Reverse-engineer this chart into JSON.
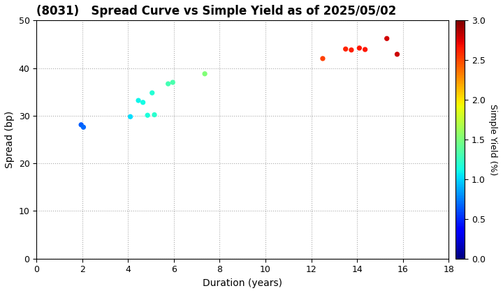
{
  "title": "(8031)   Spread Curve vs Simple Yield as of 2025/05/02",
  "xlabel": "Duration (years)",
  "ylabel": "Spread (bp)",
  "colorbar_label": "Simple Yield (%)",
  "xlim": [
    0,
    18
  ],
  "ylim": [
    0,
    50
  ],
  "xticks": [
    0,
    2,
    4,
    6,
    8,
    10,
    12,
    14,
    16,
    18
  ],
  "yticks": [
    0,
    10,
    20,
    30,
    40,
    50
  ],
  "colorbar_min": 0.0,
  "colorbar_max": 3.0,
  "colorbar_ticks": [
    0.0,
    0.5,
    1.0,
    1.5,
    2.0,
    2.5,
    3.0
  ],
  "colorbar_ticklabels": [
    "0.0",
    "0.5",
    "1.0",
    "1.5",
    "2.0",
    "2.5",
    "3.0"
  ],
  "points": [
    {
      "duration": 1.95,
      "spread": 28.1,
      "yield": 0.65
    },
    {
      "duration": 2.05,
      "spread": 27.6,
      "yield": 0.68
    },
    {
      "duration": 4.1,
      "spread": 29.8,
      "yield": 1.02
    },
    {
      "duration": 4.45,
      "spread": 33.2,
      "yield": 1.1
    },
    {
      "duration": 4.65,
      "spread": 32.8,
      "yield": 1.12
    },
    {
      "duration": 4.85,
      "spread": 30.1,
      "yield": 1.15
    },
    {
      "duration": 5.05,
      "spread": 34.8,
      "yield": 1.18
    },
    {
      "duration": 5.15,
      "spread": 30.2,
      "yield": 1.2
    },
    {
      "duration": 5.75,
      "spread": 36.7,
      "yield": 1.3
    },
    {
      "duration": 5.95,
      "spread": 37.0,
      "yield": 1.32
    },
    {
      "duration": 7.35,
      "spread": 38.8,
      "yield": 1.52
    },
    {
      "duration": 12.5,
      "spread": 42.0,
      "yield": 2.52
    },
    {
      "duration": 13.5,
      "spread": 44.0,
      "yield": 2.62
    },
    {
      "duration": 13.75,
      "spread": 43.8,
      "yield": 2.63
    },
    {
      "duration": 14.1,
      "spread": 44.2,
      "yield": 2.65
    },
    {
      "duration": 14.35,
      "spread": 43.9,
      "yield": 2.65
    },
    {
      "duration": 15.3,
      "spread": 46.2,
      "yield": 2.78
    },
    {
      "duration": 15.75,
      "spread": 42.9,
      "yield": 2.8
    }
  ],
  "marker_size": 18,
  "background_color": "#ffffff",
  "grid_color": "#aaaaaa",
  "title_fontsize": 12,
  "axis_label_fontsize": 10,
  "tick_fontsize": 9,
  "colorbar_label_fontsize": 9
}
